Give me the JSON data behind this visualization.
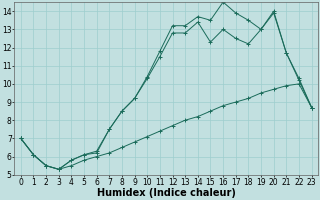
{
  "title": "",
  "xlabel": "Humidex (Indice chaleur)",
  "background_color": "#c2e0e0",
  "line_color": "#1a6b5a",
  "grid_color": "#9ecece",
  "xlim": [
    -0.5,
    23.5
  ],
  "ylim": [
    5,
    14.5
  ],
  "xticks": [
    0,
    1,
    2,
    3,
    4,
    5,
    6,
    7,
    8,
    9,
    10,
    11,
    12,
    13,
    14,
    15,
    16,
    17,
    18,
    19,
    20,
    21,
    22,
    23
  ],
  "yticks": [
    5,
    6,
    7,
    8,
    9,
    10,
    11,
    12,
    13,
    14
  ],
  "series1_x": [
    0,
    1,
    2,
    3,
    4,
    5,
    6,
    7,
    8,
    9,
    10,
    11,
    12,
    13,
    14,
    15,
    16,
    17,
    18,
    19,
    20,
    21,
    22,
    23
  ],
  "series1_y": [
    7.0,
    6.1,
    5.5,
    5.3,
    5.8,
    6.1,
    6.2,
    7.5,
    8.5,
    9.2,
    10.4,
    11.8,
    13.2,
    13.2,
    13.7,
    13.5,
    14.5,
    13.9,
    13.5,
    13.0,
    14.0,
    11.7,
    10.3,
    8.7
  ],
  "series2_x": [
    0,
    1,
    2,
    3,
    4,
    5,
    6,
    7,
    8,
    9,
    10,
    11,
    12,
    13,
    14,
    15,
    16,
    17,
    18,
    19,
    20,
    21,
    22,
    23
  ],
  "series2_y": [
    7.0,
    6.1,
    5.5,
    5.3,
    5.8,
    6.1,
    6.3,
    7.5,
    8.5,
    9.2,
    10.3,
    11.5,
    12.8,
    12.8,
    13.4,
    12.3,
    13.0,
    12.5,
    12.2,
    13.0,
    13.9,
    11.7,
    10.2,
    8.7
  ],
  "series3_x": [
    0,
    1,
    2,
    3,
    4,
    5,
    6,
    7,
    8,
    9,
    10,
    11,
    12,
    13,
    14,
    15,
    16,
    17,
    18,
    19,
    20,
    21,
    22,
    23
  ],
  "series3_y": [
    7.0,
    6.1,
    5.5,
    5.3,
    5.5,
    5.8,
    6.0,
    6.2,
    6.5,
    6.8,
    7.1,
    7.4,
    7.7,
    8.0,
    8.2,
    8.5,
    8.8,
    9.0,
    9.2,
    9.5,
    9.7,
    9.9,
    10.0,
    8.7
  ],
  "font_size_label": 6,
  "font_size_tick": 5.5,
  "xlabel_fontsize": 7
}
